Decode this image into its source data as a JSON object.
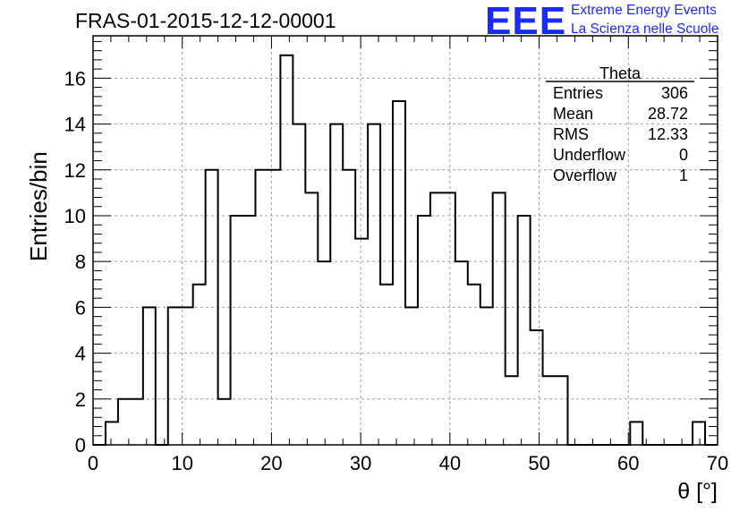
{
  "header": {
    "title": "FRAS-01-2015-12-12-00001",
    "logo_mark": "EEE",
    "logo_line1": "Extreme Energy Events",
    "logo_line2": "La Scienza nelle Scuole"
  },
  "stats": {
    "name": "Theta",
    "rows": [
      {
        "label": "Entries",
        "value": "306"
      },
      {
        "label": "Mean",
        "value": "28.72"
      },
      {
        "label": "RMS",
        "value": "12.33"
      },
      {
        "label": "Underflow",
        "value": "0"
      },
      {
        "label": "Overflow",
        "value": "1"
      }
    ]
  },
  "chart_data": {
    "type": "bar",
    "title": "FRAS-01-2015-12-12-00001",
    "xlabel": "θ [°]",
    "ylabel": "Entries/bin",
    "xlim": [
      0,
      70
    ],
    "ylim": [
      0,
      17.85
    ],
    "grid": true,
    "legend": "top-right",
    "bin_width": 1.4,
    "x_ticks": [
      0,
      10,
      20,
      30,
      40,
      50,
      60,
      70
    ],
    "y_ticks": [
      0,
      2,
      4,
      6,
      8,
      10,
      12,
      14,
      16
    ],
    "bins": [
      {
        "x0": 0.0,
        "v": 0
      },
      {
        "x0": 1.4,
        "v": 1
      },
      {
        "x0": 2.8,
        "v": 2
      },
      {
        "x0": 4.2,
        "v": 2
      },
      {
        "x0": 5.6,
        "v": 6
      },
      {
        "x0": 7.0,
        "v": 0
      },
      {
        "x0": 8.4,
        "v": 6
      },
      {
        "x0": 9.8,
        "v": 6
      },
      {
        "x0": 11.2,
        "v": 7
      },
      {
        "x0": 12.6,
        "v": 12
      },
      {
        "x0": 14.0,
        "v": 2
      },
      {
        "x0": 15.4,
        "v": 10
      },
      {
        "x0": 16.8,
        "v": 10
      },
      {
        "x0": 18.2,
        "v": 12
      },
      {
        "x0": 19.6,
        "v": 12
      },
      {
        "x0": 21.0,
        "v": 17
      },
      {
        "x0": 22.4,
        "v": 14
      },
      {
        "x0": 23.8,
        "v": 11
      },
      {
        "x0": 25.2,
        "v": 8
      },
      {
        "x0": 26.6,
        "v": 14
      },
      {
        "x0": 28.0,
        "v": 12
      },
      {
        "x0": 29.4,
        "v": 9
      },
      {
        "x0": 30.8,
        "v": 14
      },
      {
        "x0": 32.2,
        "v": 7
      },
      {
        "x0": 33.6,
        "v": 15
      },
      {
        "x0": 35.0,
        "v": 6
      },
      {
        "x0": 36.4,
        "v": 10
      },
      {
        "x0": 37.8,
        "v": 11
      },
      {
        "x0": 39.2,
        "v": 11
      },
      {
        "x0": 40.6,
        "v": 8
      },
      {
        "x0": 42.0,
        "v": 7
      },
      {
        "x0": 43.4,
        "v": 6
      },
      {
        "x0": 44.8,
        "v": 11
      },
      {
        "x0": 46.2,
        "v": 3
      },
      {
        "x0": 47.6,
        "v": 10
      },
      {
        "x0": 49.0,
        "v": 5
      },
      {
        "x0": 50.4,
        "v": 3
      },
      {
        "x0": 51.8,
        "v": 3
      },
      {
        "x0": 53.2,
        "v": 0
      },
      {
        "x0": 54.6,
        "v": 0
      },
      {
        "x0": 56.0,
        "v": 0
      },
      {
        "x0": 57.4,
        "v": 0
      },
      {
        "x0": 58.8,
        "v": 0
      },
      {
        "x0": 60.2,
        "v": 1
      },
      {
        "x0": 61.6,
        "v": 0
      },
      {
        "x0": 63.0,
        "v": 0
      },
      {
        "x0": 64.4,
        "v": 0
      },
      {
        "x0": 65.8,
        "v": 0
      },
      {
        "x0": 67.2,
        "v": 1
      },
      {
        "x0": 68.6,
        "v": 0
      }
    ]
  }
}
